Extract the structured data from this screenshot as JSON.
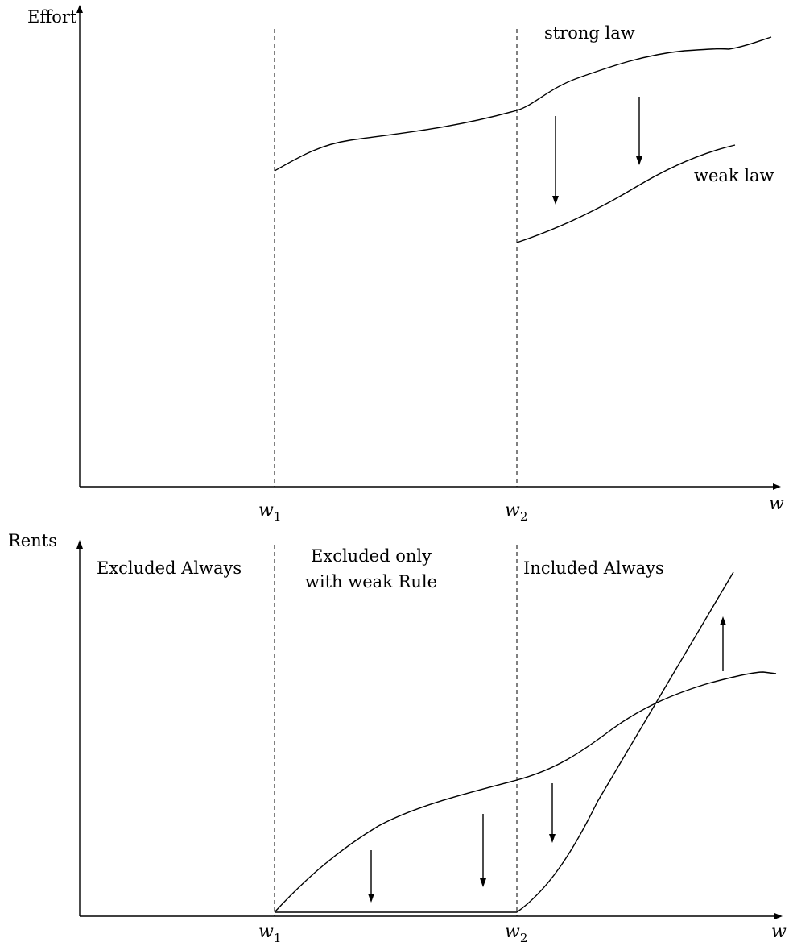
{
  "top_panel": {
    "y_axis_label": "Effort",
    "x_axis_label": "w",
    "ticks": [
      {
        "base": "w",
        "sub": "1"
      },
      {
        "base": "w",
        "sub": "2"
      }
    ],
    "curve_labels": {
      "strong": "strong law",
      "weak": "weak law"
    }
  },
  "bottom_panel": {
    "y_axis_label": "Rents",
    "x_axis_label": "w",
    "ticks": [
      {
        "base": "w",
        "sub": "1"
      },
      {
        "base": "w",
        "sub": "2"
      }
    ],
    "regions": {
      "left": "Excluded Always",
      "middle_line1": "Excluded only",
      "middle_line2": "with weak Rule",
      "right": "Included Always"
    }
  }
}
